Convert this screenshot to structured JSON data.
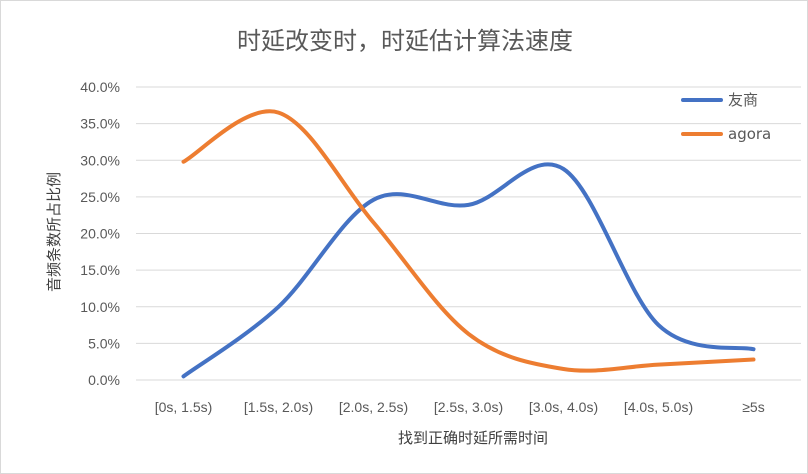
{
  "chart_data": {
    "type": "line",
    "title": "时延改变时，时延估计算法速度",
    "xlabel": "找到正确时延所需时间",
    "ylabel": "音频条数所占比例",
    "categories": [
      "[0s, 1.5s)",
      "[1.5s, 2.0s)",
      "[2.0s, 2.5s)",
      "[2.5s, 3.0s)",
      "[3.0s, 4.0s)",
      "[4.0s, 5.0s)",
      "≥5s"
    ],
    "y_ticks": [
      "0.0%",
      "5.0%",
      "10.0%",
      "15.0%",
      "20.0%",
      "25.0%",
      "30.0%",
      "35.0%",
      "40.0%"
    ],
    "ylim": [
      0,
      40
    ],
    "grid": true,
    "legend_position": "top-right",
    "smooth": true,
    "series": [
      {
        "name": "友商",
        "color": "#4472c4",
        "values": [
          0.5,
          10.0,
          24.6,
          23.9,
          28.8,
          7.5,
          4.2
        ]
      },
      {
        "name": "agora",
        "color": "#ed7d31",
        "values": [
          29.8,
          36.5,
          21.5,
          6.3,
          1.5,
          2.1,
          2.8
        ]
      }
    ]
  }
}
